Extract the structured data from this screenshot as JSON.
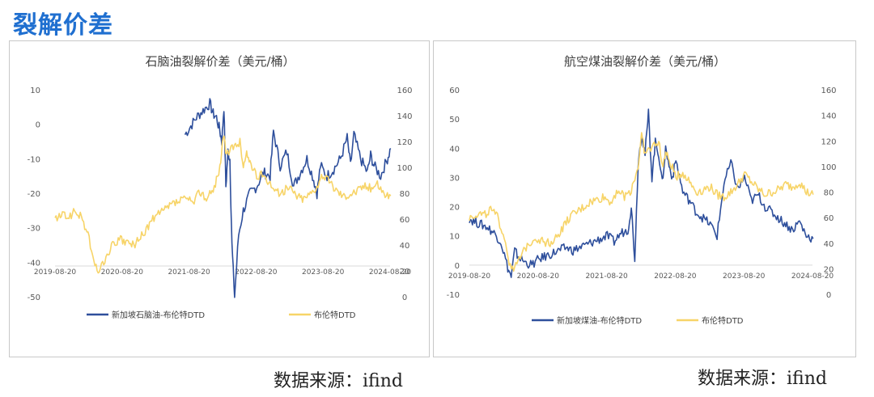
{
  "page": {
    "heading": "裂解价差"
  },
  "sources": [
    "数据来源：ifind",
    "数据来源：ifind"
  ],
  "colors": {
    "spread": "#2e4f9c",
    "brent": "#f7d468",
    "heading": "#1f6fd0"
  },
  "chart_data": [
    {
      "type": "line",
      "title": "石脑油裂解价差（美元/桶）",
      "x_ticks": [
        "2019-08-20",
        "2020-08-20",
        "2021-08-20",
        "2022-08-20",
        "2023-08-20",
        "2024-08-20"
      ],
      "y_left": {
        "ticks": [
          "10",
          "0",
          "-10",
          "-20",
          "-30",
          "-40",
          "-50"
        ],
        "min": -50,
        "max": 10
      },
      "y_right": {
        "ticks": [
          "160",
          "140",
          "120",
          "100",
          "80",
          "60",
          "40",
          "20",
          "0"
        ],
        "min": 0,
        "max": 160
      },
      "series": [
        {
          "name": "新加坡石脑油-布伦特DTD",
          "axis": "left",
          "x": [
            2021.58,
            2021.65,
            2021.75,
            2021.85,
            2021.95,
            2022.0,
            2022.05,
            2022.1,
            2022.13,
            2022.16,
            2022.19,
            2022.22,
            2022.25,
            2022.28,
            2022.32,
            2022.38,
            2022.45,
            2022.55,
            2022.65,
            2022.75,
            2022.85,
            2022.9,
            2023.0,
            2023.1,
            2023.2,
            2023.3,
            2023.4,
            2023.5,
            2023.55,
            2023.6,
            2023.7,
            2023.8,
            2023.9,
            2024.0,
            2024.05,
            2024.1,
            2024.2,
            2024.3,
            2024.35,
            2024.4,
            2024.5,
            2024.6,
            2024.65
          ],
          "values": [
            -3,
            -1,
            2,
            4,
            6,
            3,
            2,
            -2,
            -5,
            5,
            -18,
            -8,
            -10,
            -35,
            -50,
            -32,
            -25,
            -20,
            -18,
            -14,
            -15,
            -2,
            -12,
            -8,
            -18,
            -14,
            -10,
            -16,
            -20,
            -12,
            -15,
            -13,
            -10,
            -4,
            -12,
            -3,
            -10,
            -14,
            -9,
            -12,
            -15,
            -10,
            -7
          ]
        },
        {
          "name": "布伦特DTD",
          "axis": "right",
          "x": [
            2019.64,
            2019.75,
            2019.85,
            2019.95,
            2020.05,
            2020.15,
            2020.22,
            2020.3,
            2020.4,
            2020.5,
            2020.6,
            2020.7,
            2020.8,
            2020.9,
            2021.0,
            2021.1,
            2021.2,
            2021.3,
            2021.4,
            2021.5,
            2021.6,
            2021.7,
            2021.8,
            2021.9,
            2022.0,
            2022.1,
            2022.15,
            2022.2,
            2022.3,
            2022.4,
            2022.45,
            2022.5,
            2022.55,
            2022.65,
            2022.75,
            2022.85,
            2022.95,
            2023.05,
            2023.15,
            2023.25,
            2023.35,
            2023.45,
            2023.55,
            2023.65,
            2023.75,
            2023.85,
            2023.95,
            2024.05,
            2024.15,
            2024.25,
            2024.35,
            2024.45,
            2024.55,
            2024.65
          ],
          "values": [
            60,
            63,
            62,
            66,
            60,
            45,
            25,
            20,
            30,
            40,
            44,
            42,
            40,
            44,
            52,
            60,
            64,
            68,
            72,
            74,
            76,
            72,
            82,
            76,
            82,
            100,
            125,
            110,
            115,
            120,
            100,
            110,
            105,
            92,
            95,
            88,
            80,
            82,
            84,
            78,
            76,
            80,
            86,
            94,
            88,
            82,
            78,
            80,
            82,
            86,
            84,
            88,
            80,
            78
          ]
        }
      ]
    },
    {
      "type": "line",
      "title": "航空煤油裂解价差（美元/桶）",
      "x_ticks": [
        "2019-08-20",
        "2020-08-20",
        "2021-08-20",
        "2022-08-20",
        "2023-08-20",
        "2024-08-20"
      ],
      "y_left": {
        "ticks": [
          "60",
          "50",
          "40",
          "30",
          "20",
          "10",
          "0",
          "-10"
        ],
        "min": -10,
        "max": 60
      },
      "y_right": {
        "ticks": [
          "160",
          "140",
          "120",
          "100",
          "80",
          "60",
          "40",
          "20",
          "0"
        ],
        "min": 0,
        "max": 160
      },
      "series": [
        {
          "name": "新加坡煤油-布伦特DTD",
          "axis": "left",
          "x": [
            2019.64,
            2019.7,
            2019.8,
            2019.9,
            2020.0,
            2020.1,
            2020.2,
            2020.25,
            2020.3,
            2020.35,
            2020.45,
            2020.55,
            2020.65,
            2020.75,
            2020.85,
            2020.95,
            2021.05,
            2021.15,
            2021.25,
            2021.35,
            2021.45,
            2021.55,
            2021.65,
            2021.75,
            2021.85,
            2021.95,
            2022.0,
            2022.05,
            2022.1,
            2022.15,
            2022.2,
            2022.25,
            2022.3,
            2022.35,
            2022.4,
            2022.45,
            2022.5,
            2022.55,
            2022.6,
            2022.65,
            2022.75,
            2022.85,
            2022.95,
            2023.05,
            2023.15,
            2023.25,
            2023.35,
            2023.45,
            2023.55,
            2023.65,
            2023.75,
            2023.85,
            2023.95,
            2024.05,
            2024.15,
            2024.25,
            2024.35,
            2024.45,
            2024.55,
            2024.65
          ],
          "values": [
            16,
            15,
            14,
            13,
            11,
            8,
            -1,
            -4,
            5,
            3,
            1,
            0,
            2,
            3,
            4,
            5,
            6,
            5,
            6,
            7,
            8,
            9,
            10,
            8,
            11,
            12,
            20,
            2,
            35,
            45,
            38,
            52,
            30,
            42,
            38,
            28,
            40,
            34,
            30,
            36,
            25,
            22,
            18,
            16,
            14,
            10,
            28,
            35,
            26,
            30,
            22,
            24,
            20,
            18,
            16,
            14,
            12,
            15,
            10,
            9
          ]
        },
        {
          "name": "布伦特DTD",
          "axis": "right",
          "x": [
            2019.64,
            2019.75,
            2019.85,
            2019.95,
            2020.05,
            2020.15,
            2020.22,
            2020.3,
            2020.4,
            2020.5,
            2020.6,
            2020.7,
            2020.8,
            2020.9,
            2021.0,
            2021.1,
            2021.2,
            2021.3,
            2021.4,
            2021.5,
            2021.6,
            2021.7,
            2021.8,
            2021.9,
            2022.0,
            2022.1,
            2022.15,
            2022.2,
            2022.3,
            2022.4,
            2022.45,
            2022.5,
            2022.55,
            2022.65,
            2022.75,
            2022.85,
            2022.95,
            2023.05,
            2023.15,
            2023.25,
            2023.35,
            2023.45,
            2023.55,
            2023.65,
            2023.75,
            2023.85,
            2023.95,
            2024.05,
            2024.15,
            2024.25,
            2024.35,
            2024.45,
            2024.55,
            2024.65
          ],
          "values": [
            60,
            63,
            62,
            66,
            60,
            45,
            25,
            20,
            30,
            40,
            44,
            42,
            40,
            44,
            52,
            60,
            64,
            68,
            72,
            74,
            76,
            72,
            82,
            76,
            82,
            100,
            125,
            110,
            115,
            120,
            100,
            110,
            105,
            92,
            95,
            88,
            80,
            82,
            84,
            78,
            76,
            80,
            86,
            94,
            88,
            82,
            78,
            80,
            82,
            86,
            84,
            88,
            80,
            78
          ]
        }
      ]
    }
  ]
}
